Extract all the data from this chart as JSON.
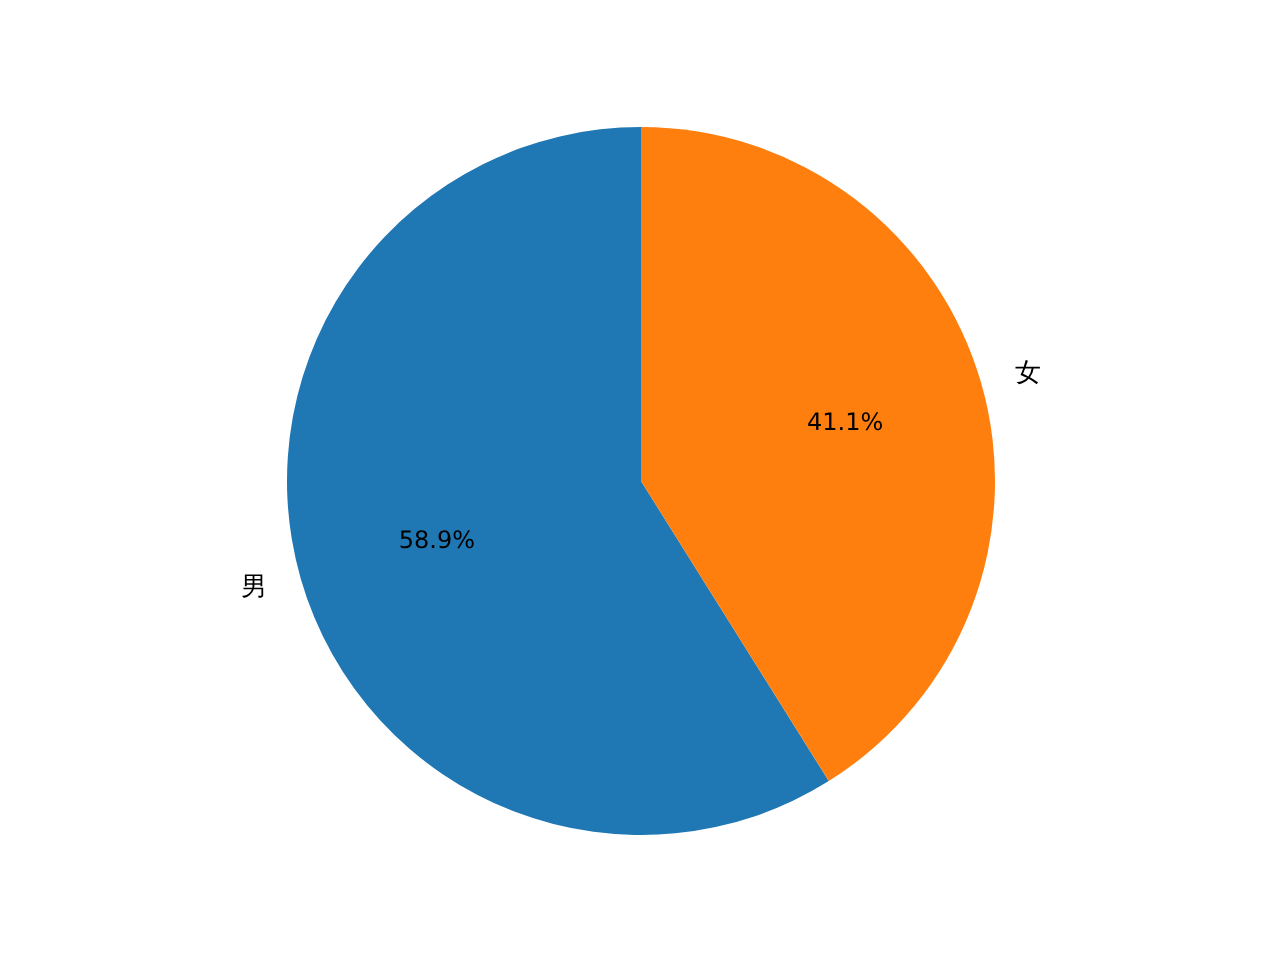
{
  "chart_data": {
    "type": "pie",
    "categories": [
      "男",
      "女"
    ],
    "values": [
      58.9,
      41.1
    ],
    "colors": [
      "#1f77b4",
      "#ff7f0e"
    ],
    "value_labels": [
      "58.9%",
      "41.1%"
    ]
  }
}
